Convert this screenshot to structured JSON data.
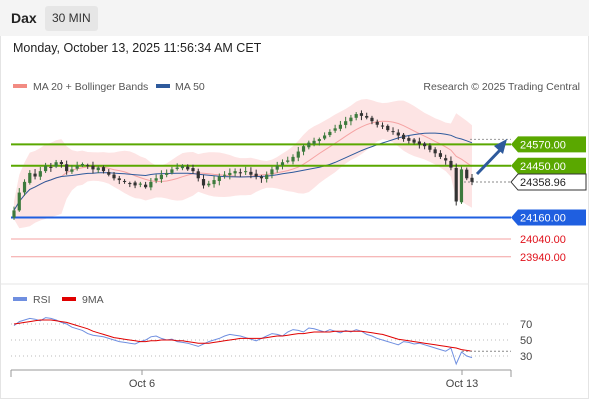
{
  "header": {
    "symbol": "Dax",
    "interval": "30 MIN"
  },
  "datetime": "Monday, October 13, 2025 11:56:34 AM CET",
  "legend": {
    "items": [
      {
        "label": "MA 20 + Bollinger Bands",
        "color": "#f28b82"
      },
      {
        "label": "MA 50",
        "color": "#2e5a9c"
      }
    ],
    "credit": "Research © 2025 Trading Central"
  },
  "colors": {
    "green": "#5aa800",
    "blue": "#1f5fe0",
    "red": "#e0101a",
    "candle_up": "#3d7a3d",
    "candle_down": "#333333",
    "band_fill": "#fde4e4",
    "ma20": "#f5a3a3",
    "ma50": "#2e5a9c",
    "rsi": "#6f8fe0",
    "rsi_ma": "#e00000"
  },
  "chart_data": [
    {
      "type": "candlestick",
      "y_range": [
        23810,
        24830
      ],
      "ma_names": [
        "MA 20 + Bollinger Bands",
        "MA 50"
      ],
      "levels": [
        {
          "value": 24570.0,
          "label": "24570.00",
          "kind": "resistance",
          "color": "#5aa800"
        },
        {
          "value": 24450.0,
          "label": "24450.00",
          "kind": "resistance",
          "color": "#5aa800"
        },
        {
          "value": 24358.96,
          "label": "24358.96",
          "kind": "last",
          "color": "#333333"
        },
        {
          "value": 24160.0,
          "label": "24160.00",
          "kind": "pivot",
          "color": "#1f5fe0"
        },
        {
          "value": 24040.0,
          "label": "24040.00",
          "kind": "support",
          "color": "#e0101a"
        },
        {
          "value": 23940.0,
          "label": "23940.00",
          "kind": "support",
          "color": "#e0101a"
        }
      ],
      "close_path": [
        24200,
        24300,
        24360,
        24410,
        24390,
        24420,
        24450,
        24440,
        24470,
        24460,
        24420,
        24430,
        24450,
        24460,
        24450,
        24430,
        24440,
        24420,
        24400,
        24380,
        24370,
        24360,
        24350,
        24340,
        24350,
        24330,
        24360,
        24380,
        24400,
        24410,
        24430,
        24440,
        24450,
        24430,
        24420,
        24380,
        24340,
        24350,
        24370,
        24390,
        24400,
        24410,
        24420,
        24410,
        24420,
        24400,
        24390,
        24380,
        24400,
        24430,
        24450,
        24470,
        24480,
        24500,
        24530,
        24560,
        24580,
        24590,
        24600,
        24620,
        24640,
        24660,
        24680,
        24700,
        24720,
        24740,
        24730,
        24720,
        24700,
        24680,
        24670,
        24650,
        24640,
        24620,
        24600,
        24590,
        24580,
        24570,
        24560,
        24540,
        24520,
        24500,
        24480,
        24440,
        24250,
        24430,
        24380,
        24360
      ],
      "annotation": "arrow-up"
    },
    {
      "type": "line",
      "title": "RSI",
      "series": [
        {
          "name": "RSI",
          "color": "#6f8fe0"
        },
        {
          "name": "9MA",
          "color": "#e00000"
        }
      ],
      "y_ticks": [
        70,
        50,
        30
      ],
      "y_range": [
        15,
        90
      ],
      "x_ticks": [
        "Oct 6",
        "Oct 13"
      ],
      "rsi": [
        68,
        73,
        75,
        77,
        76,
        74,
        78,
        77,
        75,
        72,
        70,
        66,
        64,
        62,
        58,
        56,
        55,
        54,
        52,
        50,
        48,
        47,
        46,
        45,
        48,
        50,
        54,
        55,
        52,
        50,
        51,
        48,
        47,
        46,
        44,
        42,
        45,
        48,
        50,
        52,
        55,
        57,
        56,
        55,
        53,
        51,
        49,
        52,
        55,
        58,
        57,
        55,
        60,
        63,
        62,
        60,
        65,
        64,
        62,
        60,
        63,
        61,
        59,
        62,
        60,
        63,
        61,
        57,
        55,
        52,
        50,
        48,
        46,
        44,
        48,
        47,
        45,
        46,
        44,
        42,
        40,
        38,
        36,
        40,
        20,
        35,
        30,
        28
      ],
      "rsi_ma": [
        70,
        71,
        72,
        73,
        74,
        75,
        75,
        75,
        74,
        73,
        72,
        70,
        68,
        66,
        64,
        61,
        59,
        57,
        55,
        53,
        52,
        51,
        50,
        49,
        48,
        48,
        49,
        49,
        50,
        50,
        50,
        49,
        49,
        48,
        47,
        46,
        46,
        46,
        47,
        48,
        49,
        50,
        51,
        52,
        52,
        52,
        52,
        52,
        53,
        54,
        55,
        55,
        56,
        57,
        58,
        58,
        59,
        60,
        60,
        60,
        60,
        61,
        61,
        61,
        61,
        61,
        61,
        60,
        59,
        58,
        57,
        55,
        53,
        51,
        50,
        49,
        48,
        47,
        46,
        45,
        44,
        43,
        42,
        41,
        40,
        38,
        37,
        36
      ]
    }
  ]
}
